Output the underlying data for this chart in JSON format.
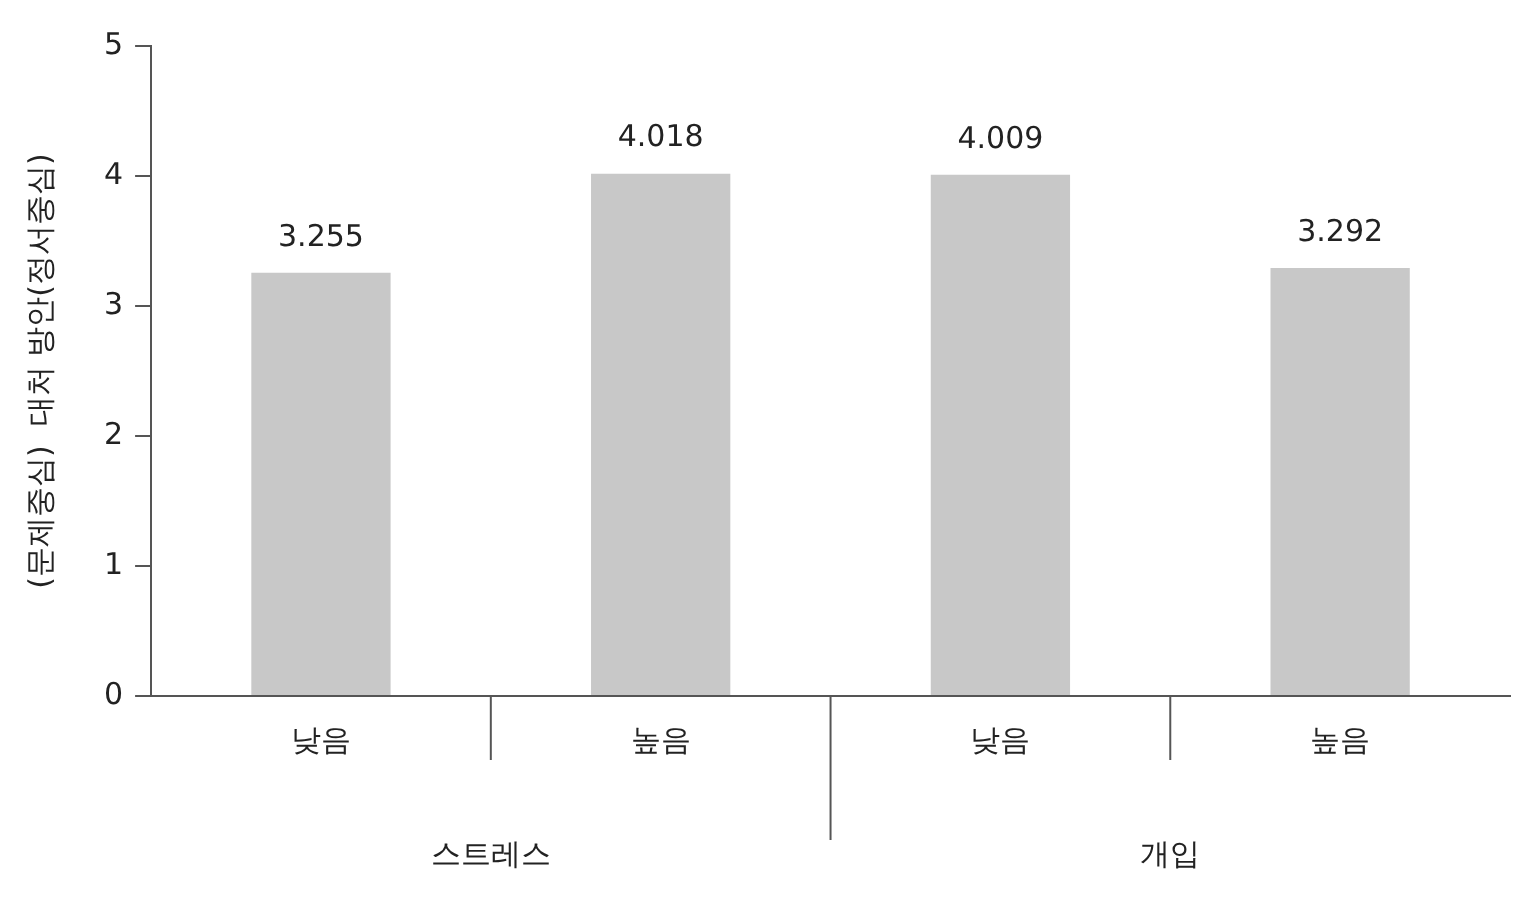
{
  "chart_data": {
    "type": "bar",
    "ylabel": "(문제중심)  대처 방안(정서중심)",
    "categories": [
      "낮음",
      "높음",
      "낮음",
      "높음"
    ],
    "values": [
      3.255,
      4.018,
      4.009,
      3.292
    ],
    "color": "#c8c8c8",
    "ylim": [
      0,
      5
    ],
    "yticks": [
      0,
      1,
      2,
      3,
      4,
      5
    ],
    "grid": false,
    "legend": false,
    "data_labels": true,
    "annotations": [
      "스트레스",
      "개입"
    ]
  }
}
